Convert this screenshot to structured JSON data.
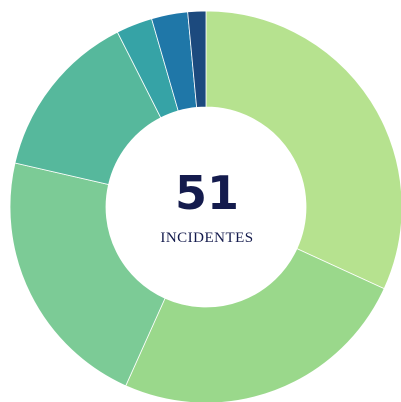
{
  "chart_data": {
    "type": "donut",
    "values": [
      32,
      25,
      22,
      14,
      3,
      3,
      1.5
    ],
    "colors": [
      "#b6e28f",
      "#9ad88b",
      "#7ccb96",
      "#56b89c",
      "#36a3a6",
      "#1f77a8",
      "#1c4a7e"
    ],
    "center_value": 51,
    "center_label": "INCIDENTES"
  }
}
